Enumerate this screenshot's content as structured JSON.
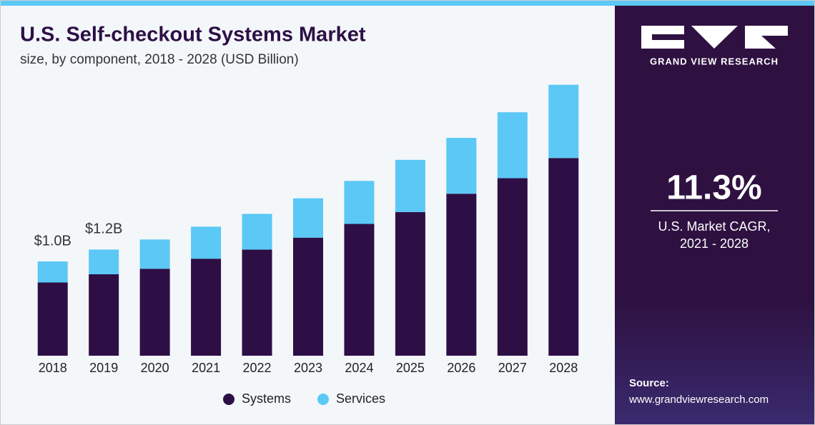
{
  "chart_data": {
    "type": "stacked_bar",
    "title": "U.S. Self-checkout Systems Market",
    "subtitle": "size, by component, 2018 - 2028 (USD Billion)",
    "categories": [
      "2018",
      "2019",
      "2020",
      "2021",
      "2022",
      "2023",
      "2024",
      "2025",
      "2026",
      "2027",
      "2028"
    ],
    "series": [
      {
        "name": "Systems",
        "color": "#2d0f45",
        "values": [
          0.8,
          0.89,
          0.95,
          1.06,
          1.16,
          1.29,
          1.44,
          1.57,
          1.77,
          1.94,
          2.16
        ]
      },
      {
        "name": "Services",
        "color": "#5bc8f5",
        "values": [
          0.23,
          0.27,
          0.32,
          0.35,
          0.39,
          0.43,
          0.47,
          0.57,
          0.61,
          0.72,
          0.8
        ]
      }
    ],
    "annotations": [
      {
        "category": "2018",
        "text": "$1.0B"
      },
      {
        "category": "2019",
        "text": "$1.2B"
      }
    ],
    "ylim": [
      0,
      3.2
    ]
  },
  "side_panel": {
    "brand": "GRAND VIEW RESEARCH",
    "cagr": "11.3%",
    "cagr_label_1": "U.S. Market CAGR,",
    "cagr_label_2": "2021 - 2028",
    "source_label": "Source:",
    "source_url": "www.grandviewresearch.com"
  }
}
